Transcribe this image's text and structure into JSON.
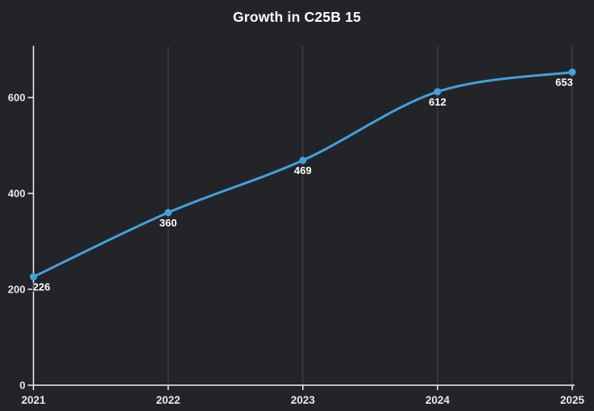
{
  "title": "Growth in C25B 15",
  "colors": {
    "background": "#232428",
    "line": "#42a1dd",
    "marker": "#42a1dd",
    "grid": "#4a4b50",
    "axis": "#f2f2f2",
    "tick_text": "#e9e9e9",
    "label_text": "#ffffff"
  },
  "chart_data": {
    "type": "line",
    "title": "Growth in C25B 15",
    "x": [
      "2021",
      "2022",
      "2023",
      "2024",
      "2025"
    ],
    "values": [
      226,
      360,
      469,
      612,
      653
    ],
    "point_labels": [
      "226",
      "360",
      "469",
      "612",
      "653"
    ],
    "xlabel": "",
    "ylabel": "",
    "yticks": [
      0,
      200,
      400,
      600
    ],
    "ylim": [
      0,
      707
    ],
    "grid": "vertical-only",
    "legend": "none",
    "smooth": true,
    "markers": true
  }
}
